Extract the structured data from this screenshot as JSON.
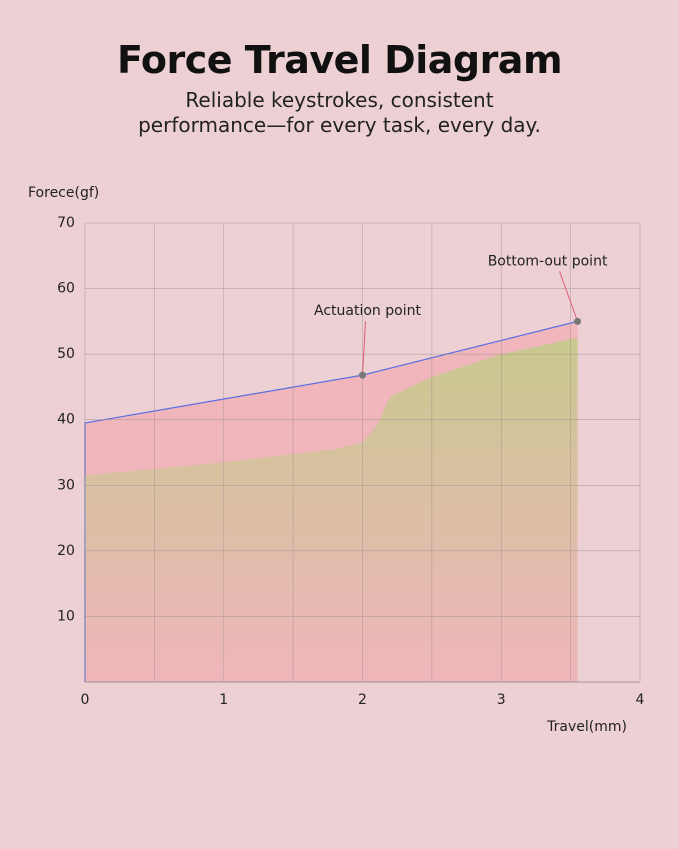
{
  "chart_data": {
    "type": "area",
    "title": "Force Travel Diagram",
    "subtitle": [
      "Reliable keystrokes, consistent",
      "performance—for every task, every day."
    ],
    "ylabel": "Forece(gf)",
    "xlabel": "Travel(mm)",
    "xlim": [
      0,
      4
    ],
    "xticks": [
      0,
      1,
      2,
      3,
      4
    ],
    "xgrid": [
      0,
      0.5,
      1,
      1.5,
      2,
      2.5,
      3,
      3.5,
      4
    ],
    "ylim": [
      0,
      70
    ],
    "yticks": [
      10,
      20,
      30,
      40,
      50,
      60,
      70
    ],
    "grid": true,
    "series": [
      {
        "color": "#f0b6bb",
        "line_color": "#5b6ee0",
        "x": [
          0,
          0,
          2,
          3.55
        ],
        "values": [
          0,
          39.5,
          46.8,
          55
        ]
      },
      {
        "color": "#c8c88e",
        "x": [
          0,
          1,
          1.8,
          2,
          2.1,
          2.2,
          2.5,
          3,
          3.55
        ],
        "values": [
          31.5,
          33.5,
          35.5,
          36.5,
          39,
          43.5,
          46.5,
          50,
          52.5
        ]
      }
    ],
    "annotations": [
      {
        "text": "Actuation point",
        "x": 2,
        "y": 46.8
      },
      {
        "text": "Bottom-out point",
        "x": 3.55,
        "y": 55
      }
    ]
  }
}
